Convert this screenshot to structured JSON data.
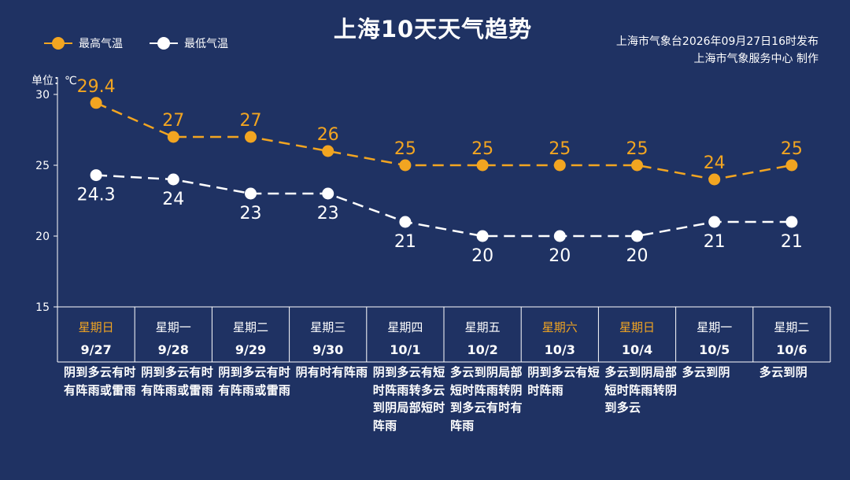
{
  "title": "上海10天天气趋势",
  "unit_label": "单位：℃",
  "issuer": {
    "line1": "上海市气象台2026年09月27日16时发布",
    "line2": "上海市气象服务中心  制作"
  },
  "colors": {
    "background": "#1f3263",
    "max": "#f2a521",
    "min": "#ffffff",
    "weekend": "#f2a521",
    "grid": "#ffffff"
  },
  "chart_data": {
    "type": "line",
    "ylim": [
      15,
      30
    ],
    "yticks": [
      15,
      20,
      25,
      30
    ],
    "dates": [
      "9/27",
      "9/28",
      "9/29",
      "9/30",
      "10/1",
      "10/2",
      "10/3",
      "10/4",
      "10/5",
      "10/6"
    ],
    "weekdays": [
      "星期日",
      "星期一",
      "星期二",
      "星期三",
      "星期四",
      "星期五",
      "星期六",
      "星期日",
      "星期一",
      "星期二"
    ],
    "weekend_highlight": [
      true,
      false,
      false,
      false,
      false,
      false,
      true,
      true,
      false,
      false
    ],
    "series": [
      {
        "name": "最高气温",
        "color": "#f2a521",
        "dash": true,
        "values": [
          29.4,
          27,
          27,
          26,
          25,
          25,
          25,
          25,
          24,
          25
        ]
      },
      {
        "name": "最低气温",
        "color": "#ffffff",
        "dash": true,
        "values": [
          24.3,
          24,
          23,
          23,
          21,
          20,
          20,
          20,
          21,
          21
        ]
      }
    ],
    "descriptions": [
      "阴到多云有时有阵雨或雷雨",
      "阴到多云有时有阵雨或雷雨",
      "阴到多云有时有阵雨或雷雨",
      "阴有时有阵雨",
      "阴到多云有短时阵雨转多云到阴局部短时阵雨",
      "多云到阴局部短时阵雨转阴到多云有时有阵雨",
      "阴到多云有短时阵雨",
      "多云到阴局部短时阵雨转阴到多云",
      "多云到阴",
      "多云到阴"
    ]
  }
}
